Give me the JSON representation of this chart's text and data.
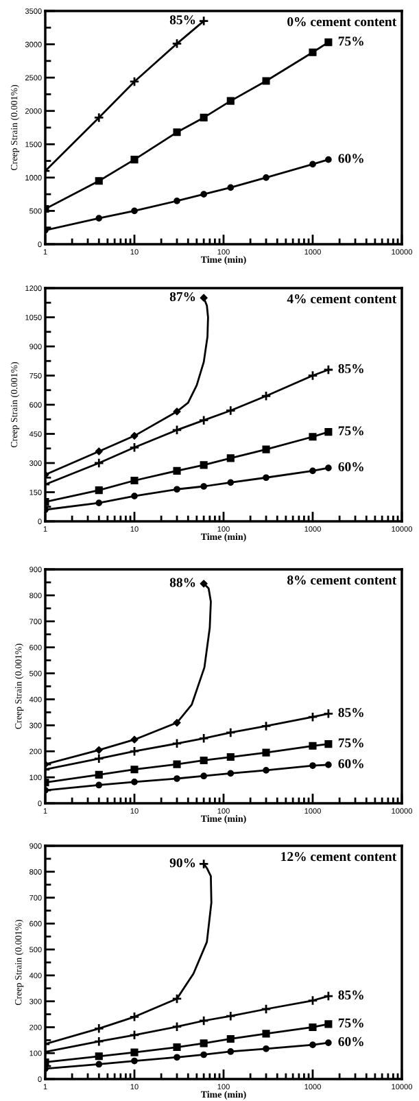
{
  "chart_data": [
    {
      "type": "line",
      "xlabel": "Time (min)",
      "ylabel": "Creep Strain (0.001%)",
      "log": "x",
      "xlim": [
        1,
        10000
      ],
      "xticks": [
        1,
        10,
        100,
        1000,
        10000
      ],
      "ylim": [
        0,
        3500
      ],
      "yticks": [
        0,
        500,
        1000,
        1500,
        2000,
        2500,
        3000,
        3500
      ],
      "grid": false,
      "legend": false,
      "annotations": [
        "0% cement content"
      ],
      "series": [
        {
          "type": "scatter",
          "name": "85%",
          "color": "#000000",
          "marker": "cross",
          "x": [
            1,
            4,
            10,
            30,
            60
          ],
          "values": [
            1100,
            1900,
            2440,
            3010,
            3350
          ]
        },
        {
          "type": "line",
          "color": "#000000",
          "marker": "none",
          "x": [
            1,
            4,
            10,
            30,
            60
          ],
          "values": [
            1100,
            1900,
            2440,
            3010,
            3350
          ]
        },
        {
          "name": "75%",
          "color": "#000000",
          "marker": "square",
          "x": [
            1,
            4,
            10,
            30,
            60,
            120,
            300,
            1000,
            1500
          ],
          "values": [
            530,
            950,
            1270,
            1680,
            1900,
            2150,
            2450,
            2880,
            3030
          ]
        },
        {
          "name": "60%",
          "color": "#000000",
          "marker": "circle",
          "x": [
            1,
            4,
            10,
            30,
            60,
            120,
            300,
            1000,
            1500
          ],
          "values": [
            210,
            390,
            500,
            650,
            750,
            850,
            1000,
            1200,
            1270
          ]
        }
      ]
    },
    {
      "type": "line",
      "xlabel": "Time (min)",
      "ylabel": "Creep Strain (0.001%)",
      "log": "x",
      "xlim": [
        1,
        10000
      ],
      "xticks": [
        1,
        10,
        100,
        1000,
        10000
      ],
      "ylim": [
        0,
        1200
      ],
      "yticks": [
        0,
        150,
        300,
        450,
        600,
        750,
        900,
        1050,
        1200
      ],
      "grid": false,
      "legend": false,
      "annotations": [
        "4% cement content"
      ],
      "series": [
        {
          "type": "scatter",
          "name": "87%",
          "color": "#000000",
          "marker": "diamond",
          "x": [
            1,
            4,
            10,
            30,
            60
          ],
          "values": [
            240,
            360,
            440,
            565,
            1150
          ]
        },
        {
          "type": "line",
          "color": "#000000",
          "marker": "none",
          "x": [
            1,
            4,
            10,
            30,
            40,
            50,
            60,
            66,
            67,
            65,
            60
          ],
          "values": [
            240,
            360,
            440,
            565,
            610,
            700,
            820,
            950,
            1050,
            1110,
            1150
          ]
        },
        {
          "name": "85%",
          "color": "#000000",
          "marker": "cross",
          "x": [
            1,
            4,
            10,
            30,
            60,
            120,
            300,
            1000,
            1500
          ],
          "values": [
            190,
            300,
            380,
            470,
            520,
            570,
            645,
            750,
            780
          ]
        },
        {
          "name": "75%",
          "color": "#000000",
          "marker": "square",
          "x": [
            1,
            4,
            10,
            30,
            60,
            120,
            300,
            1000,
            1500
          ],
          "values": [
            100,
            160,
            210,
            260,
            290,
            325,
            370,
            435,
            460
          ]
        },
        {
          "name": "60%",
          "color": "#000000",
          "marker": "circle",
          "x": [
            1,
            4,
            10,
            30,
            60,
            120,
            300,
            1000,
            1500
          ],
          "values": [
            60,
            95,
            130,
            165,
            180,
            200,
            225,
            260,
            275
          ]
        }
      ]
    },
    {
      "type": "line",
      "xlabel": "Time (min)",
      "ylabel": "Creep Strain (0.001%)",
      "log": "x",
      "xlim": [
        1,
        10000
      ],
      "xticks": [
        1,
        10,
        100,
        1000,
        10000
      ],
      "ylim": [
        0,
        900
      ],
      "yticks": [
        0,
        100,
        200,
        300,
        400,
        500,
        600,
        700,
        800,
        900
      ],
      "grid": false,
      "legend": false,
      "annotations": [
        "8% cement content"
      ],
      "series": [
        {
          "type": "scatter",
          "name": "88%",
          "color": "#000000",
          "marker": "diamond",
          "x": [
            1,
            4,
            10,
            30,
            60
          ],
          "values": [
            150,
            205,
            245,
            310,
            845
          ]
        },
        {
          "type": "line",
          "color": "#000000",
          "marker": "none",
          "x": [
            1,
            4,
            10,
            30,
            44,
            61,
            70,
            72,
            68,
            60
          ],
          "values": [
            150,
            205,
            245,
            310,
            380,
            523,
            675,
            776,
            827,
            845
          ]
        },
        {
          "name": "85%",
          "color": "#000000",
          "marker": "cross",
          "x": [
            1,
            4,
            10,
            30,
            60,
            120,
            300,
            1000,
            1500
          ],
          "values": [
            130,
            172,
            200,
            230,
            250,
            272,
            297,
            332,
            345
          ]
        },
        {
          "name": "75%",
          "color": "#000000",
          "marker": "square",
          "x": [
            1,
            4,
            10,
            30,
            60,
            120,
            300,
            1000,
            1500
          ],
          "values": [
            80,
            110,
            130,
            150,
            165,
            178,
            195,
            221,
            228
          ]
        },
        {
          "name": "60%",
          "color": "#000000",
          "marker": "circle",
          "x": [
            1,
            4,
            10,
            30,
            60,
            120,
            300,
            1000,
            1500
          ],
          "values": [
            50,
            70,
            82,
            95,
            105,
            115,
            127,
            145,
            148
          ]
        }
      ]
    },
    {
      "type": "line",
      "xlabel": "Time (min)",
      "ylabel": "Creep Strain (0.001%)",
      "log": "x",
      "xlim": [
        1,
        10000
      ],
      "xticks": [
        1,
        10,
        100,
        1000,
        10000
      ],
      "ylim": [
        0,
        900
      ],
      "yticks": [
        0,
        100,
        200,
        300,
        400,
        500,
        600,
        700,
        800,
        900
      ],
      "grid": false,
      "legend": false,
      "annotations": [
        "12% cement content"
      ],
      "series": [
        {
          "type": "scatter",
          "name": "90%",
          "color": "#000000",
          "marker": "cross",
          "x": [
            1,
            4,
            10,
            30,
            60
          ],
          "values": [
            135,
            195,
            240,
            310,
            830
          ]
        },
        {
          "type": "line",
          "color": "#000000",
          "marker": "none",
          "x": [
            1,
            4,
            10,
            30,
            46,
            65,
            73,
            72,
            65,
            60
          ],
          "values": [
            135,
            195,
            240,
            310,
            407,
            529,
            681,
            783,
            814,
            830
          ]
        },
        {
          "name": "85%",
          "color": "#000000",
          "marker": "cross",
          "x": [
            1,
            4,
            10,
            30,
            60,
            120,
            300,
            1000,
            1500
          ],
          "values": [
            105,
            145,
            170,
            202,
            225,
            243,
            270,
            303,
            320
          ]
        },
        {
          "name": "75%",
          "color": "#000000",
          "marker": "square",
          "x": [
            1,
            4,
            10,
            30,
            60,
            120,
            300,
            1000,
            1500
          ],
          "values": [
            65,
            88,
            103,
            123,
            138,
            155,
            175,
            200,
            212
          ]
        },
        {
          "name": "60%",
          "color": "#000000",
          "marker": "circle",
          "x": [
            1,
            4,
            10,
            30,
            60,
            120,
            300,
            1000,
            1500
          ],
          "values": [
            40,
            57,
            70,
            84,
            94,
            106,
            117,
            132,
            140
          ]
        }
      ]
    }
  ]
}
